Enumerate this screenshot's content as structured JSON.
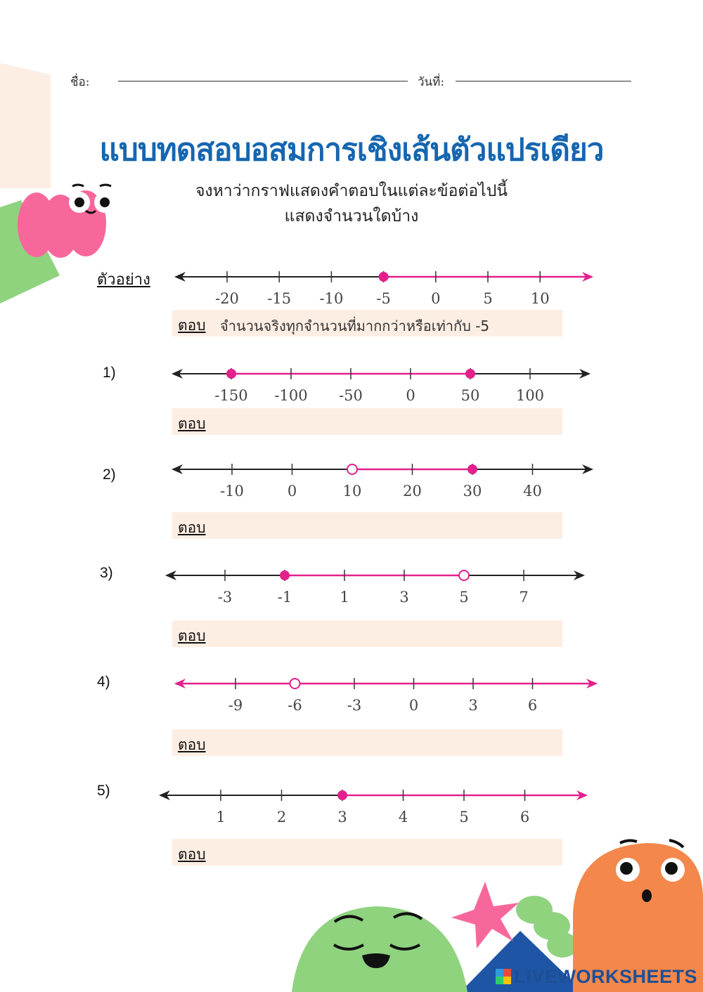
{
  "header": {
    "name_label": "ชื่อ:",
    "date_label": "วันที่:"
  },
  "title": "แบบทดสอบอสมการเชิงเส้นตัวแปรเดียว",
  "instruction": {
    "line1": "จงหาว่ากราฟแสดงคำตอบในแต่ละข้อต่อไปนี้",
    "line2": "แสดงจำนวนใดบ้าง"
  },
  "example": {
    "label": "ตัวอย่าง",
    "answer_label": "ตอบ",
    "answer_text": "จำนวนจริงทุกจำนวนที่มากกว่าหรือเท่ากับ -5"
  },
  "colors": {
    "title": "#1666b0",
    "solution": "#e3208c",
    "axis": "#222222",
    "answer_bg": "#fdeee3"
  },
  "number_lines": [
    {
      "id": "example",
      "number": "",
      "ticks": [
        "-20",
        "-15",
        "-10",
        "-5",
        "0",
        "5",
        "10"
      ],
      "segment": {
        "from": -5,
        "to": null,
        "left_arrow": false,
        "right_arrow": true
      },
      "points": [
        {
          "value": -5,
          "style": "closed"
        }
      ]
    },
    {
      "id": "q1",
      "number": "1)",
      "ticks": [
        "-150",
        "-100",
        "-50",
        "0",
        "50",
        "100"
      ],
      "segment": {
        "from": -150,
        "to": 50,
        "left_arrow": false,
        "right_arrow": false
      },
      "points": [
        {
          "value": -150,
          "style": "closed"
        },
        {
          "value": 50,
          "style": "closed"
        }
      ]
    },
    {
      "id": "q2",
      "number": "2)",
      "ticks": [
        "-10",
        "0",
        "10",
        "20",
        "30",
        "40"
      ],
      "segment": {
        "from": 10,
        "to": 30,
        "left_arrow": false,
        "right_arrow": false
      },
      "points": [
        {
          "value": 10,
          "style": "open"
        },
        {
          "value": 30,
          "style": "closed"
        }
      ]
    },
    {
      "id": "q3",
      "number": "3)",
      "ticks": [
        "-3",
        "-1",
        "1",
        "3",
        "5",
        "7"
      ],
      "segment": {
        "from": -1,
        "to": 5,
        "left_arrow": false,
        "right_arrow": false
      },
      "points": [
        {
          "value": -1,
          "style": "closed"
        },
        {
          "value": 5,
          "style": "open"
        }
      ]
    },
    {
      "id": "q4",
      "number": "4)",
      "ticks": [
        "-9",
        "-6",
        "-3",
        "0",
        "3",
        "6"
      ],
      "segment": {
        "from": null,
        "to": null,
        "left_arrow": true,
        "right_arrow": true
      },
      "points": [
        {
          "value": -6,
          "style": "open"
        }
      ]
    },
    {
      "id": "q5",
      "number": "5)",
      "ticks": [
        "1",
        "2",
        "3",
        "4",
        "5",
        "6"
      ],
      "segment": {
        "from": 3,
        "to": null,
        "left_arrow": false,
        "right_arrow": true
      },
      "points": [
        {
          "value": 3,
          "style": "closed"
        }
      ]
    }
  ],
  "answers": [
    {
      "label": "ตอบ",
      "text": ""
    },
    {
      "label": "ตอบ",
      "text": ""
    },
    {
      "label": "ตอบ",
      "text": ""
    },
    {
      "label": "ตอบ",
      "text": ""
    },
    {
      "label": "ตอบ",
      "text": ""
    }
  ],
  "brand": "LIVEWORKSHEETS"
}
